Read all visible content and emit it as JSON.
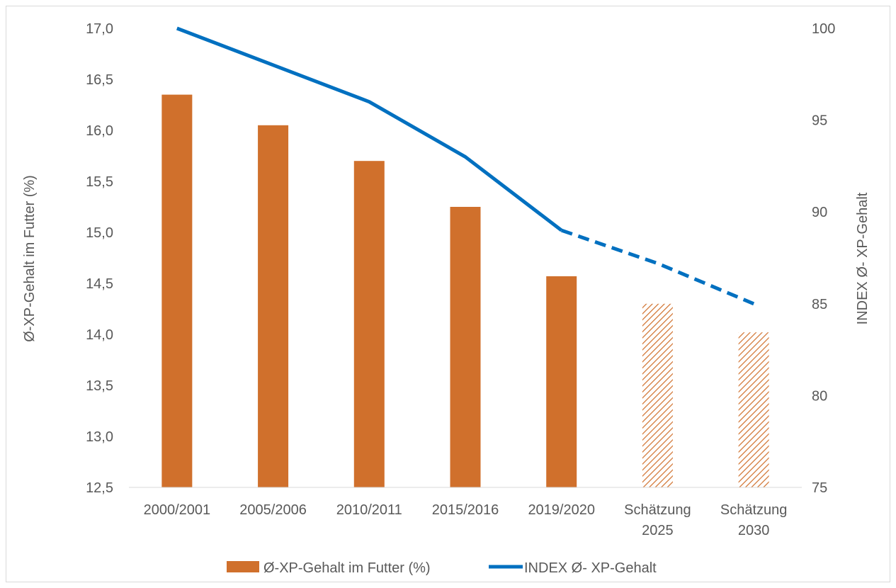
{
  "chart_data": {
    "type": "bar",
    "categories": [
      [
        "2000/2001"
      ],
      [
        "2005/2006"
      ],
      [
        "2010/2011"
      ],
      [
        "2015/2016"
      ],
      [
        "2019/2020"
      ],
      [
        "Schätzung",
        "2025"
      ],
      [
        "Schätzung",
        "2030"
      ]
    ],
    "estimated": [
      false,
      false,
      false,
      false,
      false,
      true,
      true
    ],
    "series": [
      {
        "name": "Ø-XP-Gehalt im Futter (%)",
        "type": "bar",
        "axis": "left",
        "values": [
          16.35,
          16.05,
          15.7,
          15.25,
          14.57,
          14.3,
          14.02
        ],
        "color": "#d0702c"
      },
      {
        "name": "INDEX Ø- XP-Gehalt",
        "type": "line",
        "axis": "right",
        "values": [
          100,
          98,
          96,
          93,
          89,
          87.2,
          85
        ],
        "color": "#0070c0",
        "dashed_from_index": 4
      }
    ],
    "ylabel": "Ø-XP-Gehalt im Futter (%)",
    "y2label": "INDEX Ø- XP-Gehalt",
    "ylim": [
      12.5,
      17.0
    ],
    "yticks": [
      "12,5",
      "13,0",
      "13,5",
      "14,0",
      "14,5",
      "15,0",
      "15,5",
      "16,0",
      "16,5",
      "17,0"
    ],
    "y2lim": [
      75,
      100
    ],
    "y2ticks": [
      "75",
      "80",
      "85",
      "90",
      "95",
      "100"
    ],
    "grid": false,
    "legend": "bottom-center"
  }
}
